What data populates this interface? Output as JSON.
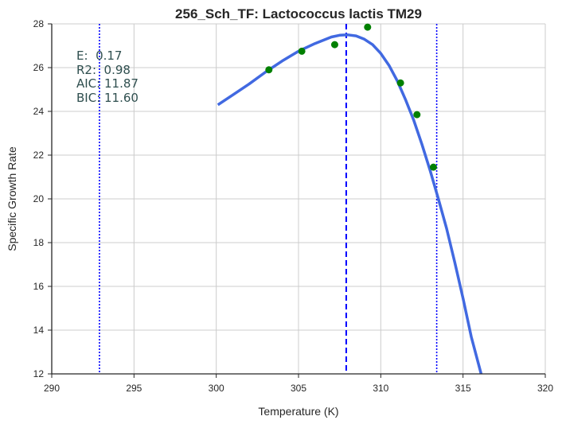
{
  "chart_data": {
    "type": "line",
    "title": "256_Sch_TF: Lactococcus lactis TM29",
    "xlabel": "Temperature (K)",
    "ylabel": "Specific Growth Rate",
    "xlim": [
      290,
      320
    ],
    "ylim": [
      12,
      28
    ],
    "xticks": [
      290,
      295,
      300,
      305,
      310,
      315,
      320
    ],
    "yticks": [
      12,
      14,
      16,
      18,
      20,
      22,
      24,
      26,
      28
    ],
    "grid": true,
    "annotations": [
      "E:  0.17",
      "R2:  0.98",
      "AIC: 11.87",
      "BIC: 11.60"
    ],
    "series": [
      {
        "kind": "line",
        "color": "#4169e1",
        "x": [
          300.1,
          301,
          302,
          303,
          304,
          305,
          306,
          307,
          307.5,
          308,
          308.5,
          309,
          309.5,
          310,
          310.5,
          311,
          311.5,
          312,
          312.5,
          313,
          313.5,
          314,
          314.5,
          315,
          315.5,
          316.1
        ],
        "y": [
          24.3,
          24.75,
          25.25,
          25.8,
          26.3,
          26.75,
          27.1,
          27.4,
          27.48,
          27.5,
          27.45,
          27.3,
          27.05,
          26.65,
          26.1,
          25.4,
          24.55,
          23.6,
          22.5,
          21.3,
          20.0,
          18.65,
          17.1,
          15.45,
          13.7,
          12.0
        ]
      },
      {
        "kind": "scatter",
        "color": "#008000",
        "x": [
          303.2,
          305.2,
          307.2,
          309.2,
          311.2,
          312.2,
          313.2
        ],
        "y": [
          25.9,
          26.75,
          27.05,
          27.85,
          25.3,
          23.85,
          21.45
        ]
      }
    ],
    "vlines": [
      {
        "x": 292.9,
        "style": "dotted",
        "color": "#0000ff"
      },
      {
        "x": 307.9,
        "style": "dashed",
        "color": "#0000ff"
      },
      {
        "x": 313.4,
        "style": "dotted",
        "color": "#0000ff"
      }
    ],
    "colors": {
      "grid": "#cccccc",
      "axis": "#262626"
    }
  }
}
